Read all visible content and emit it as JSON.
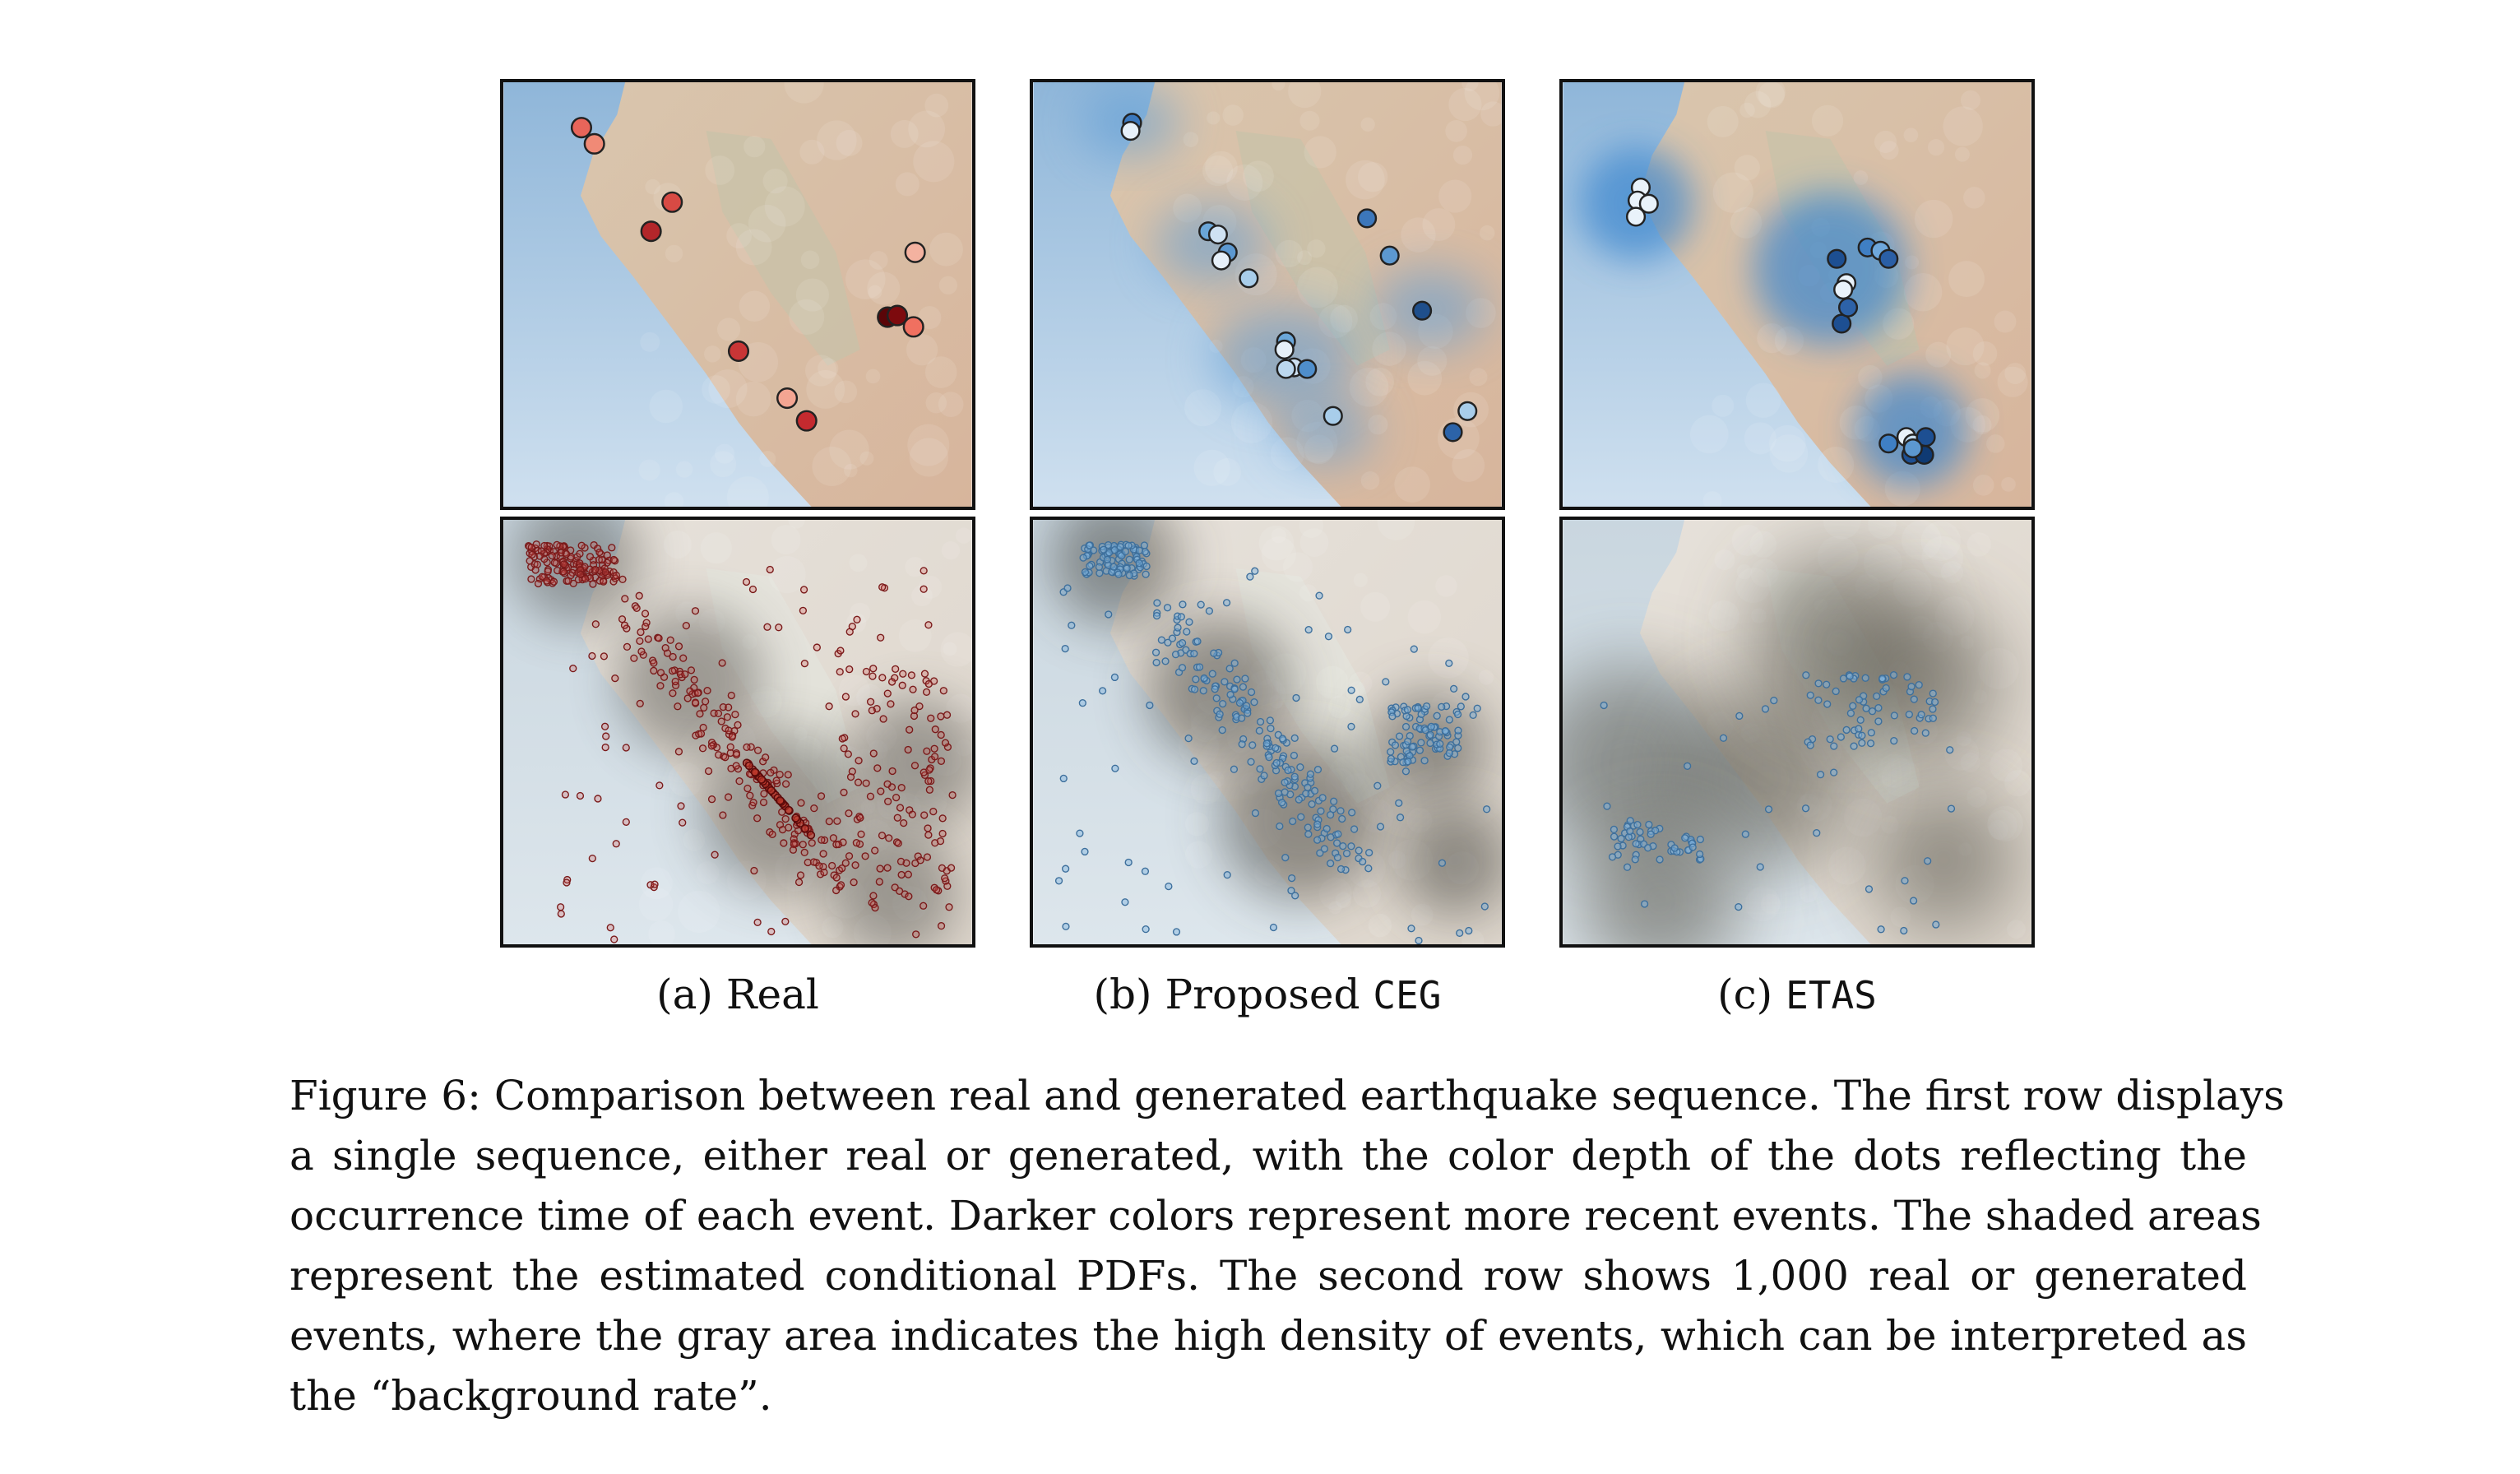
{
  "figure": {
    "subcaptions": [
      {
        "label": "(a) Real",
        "prefix": "(a) ",
        "name": "Real",
        "mono": false
      },
      {
        "label": "(b) Proposed CEG",
        "prefix": "(b) Proposed ",
        "name": "CEG",
        "mono": true
      },
      {
        "label": "(c) ETAS",
        "prefix": "(c) ",
        "name": "ETAS",
        "mono": true
      }
    ],
    "caption_lines": [
      "Figure 6: Comparison between real and generated earthquake sequence. The first row displays",
      "a single sequence, either real or generated, with the color depth of the dots reflecting the",
      "occurrence time of each event. Darker colors represent more recent events. The shaded areas",
      "represent the estimated conditional PDFs.  The second row shows 1,000 real or generated",
      "events, where the gray area indicates the high density of events, which can be interpreted as",
      "the “background rate”."
    ],
    "colors": {
      "real": "#d9534f",
      "real_dark": "#7a0a0a",
      "ceg": "#3d7fc1",
      "etas": "#2f6fb5",
      "ocean": "#c7ddef",
      "land": "#e8dccd"
    }
  }
}
